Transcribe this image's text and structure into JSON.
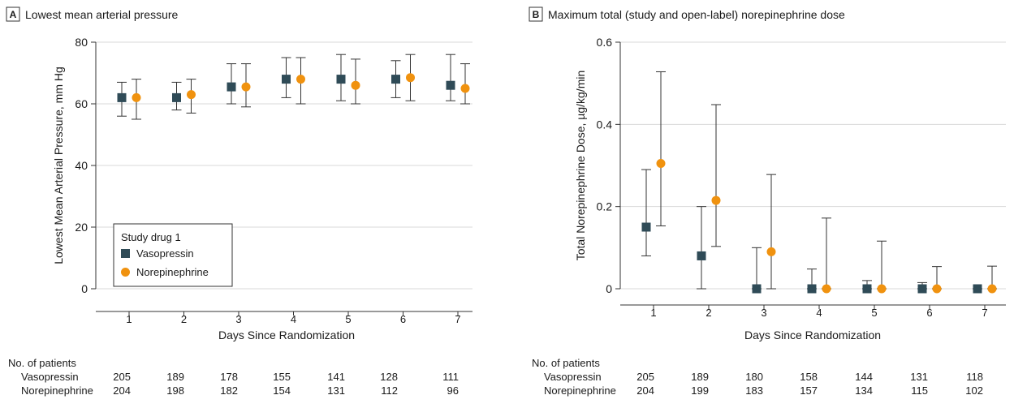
{
  "colors": {
    "vasopressin": "#2f4b57",
    "norepinephrine": "#f0920f",
    "grid": "#d9d9d9",
    "axis": "#333333",
    "errorbar": "#333333"
  },
  "chart_data": [
    {
      "type": "scatter",
      "panel_letter": "A",
      "title": "Lowest mean arterial pressure",
      "xlabel": "Days Since Randomization",
      "ylabel": "Lowest Mean Arterial Pressure, mm Hg",
      "x": [
        1,
        2,
        3,
        4,
        5,
        6,
        7
      ],
      "xlim": [
        0.5,
        7.5
      ],
      "ylim": [
        0,
        80
      ],
      "yticks": [
        0,
        20,
        40,
        60,
        80
      ],
      "ytick_labels": [
        "0",
        "20",
        "40",
        "60",
        "80"
      ],
      "grid": true,
      "legend": {
        "title": "Study drug 1",
        "placement": "lower-left",
        "entries": [
          "Vasopressin",
          "Norepinephrine"
        ]
      },
      "series": [
        {
          "name": "Vasopressin",
          "marker": "square",
          "values": [
            62,
            62,
            65.5,
            68,
            68,
            68,
            66
          ],
          "lower": [
            56,
            58,
            60,
            62,
            61,
            62,
            61
          ],
          "upper": [
            67,
            67,
            73,
            75,
            76,
            74,
            76
          ]
        },
        {
          "name": "Norepinephrine",
          "marker": "circle",
          "values": [
            62,
            63,
            65.5,
            68,
            66,
            68.5,
            65
          ],
          "lower": [
            55,
            57,
            59,
            60,
            60,
            61,
            60
          ],
          "upper": [
            68,
            68,
            73,
            75,
            74.5,
            76,
            73
          ]
        }
      ],
      "patients": {
        "title": "No. of patients",
        "rows": [
          {
            "label": "Vasopressin",
            "values": [
              "205",
              "189",
              "178",
              "155",
              "141",
              "128",
              "111"
            ]
          },
          {
            "label": "Norepinephrine",
            "values": [
              "204",
              "198",
              "182",
              "154",
              "131",
              "112",
              "96"
            ]
          }
        ]
      }
    },
    {
      "type": "scatter",
      "panel_letter": "B",
      "title": "Maximum total (study and open-label) norepinephrine dose",
      "xlabel": "Days Since Randomization",
      "ylabel": "Total Norepinephrine Dose, µg/kg/min",
      "x": [
        1,
        2,
        3,
        4,
        5,
        6,
        7
      ],
      "xlim": [
        0.5,
        7.5
      ],
      "ylim": [
        0,
        0.6
      ],
      "yticks": [
        0,
        0.2,
        0.4,
        0.6
      ],
      "ytick_labels": [
        "0",
        "0.2",
        "0.4",
        "0.6"
      ],
      "grid": true,
      "series": [
        {
          "name": "Vasopressin",
          "marker": "square",
          "values": [
            0.15,
            0.08,
            0,
            0,
            0,
            0,
            0
          ],
          "lower": [
            0.08,
            0,
            0,
            0,
            0,
            0,
            0
          ],
          "upper": [
            0.29,
            0.2,
            0.1,
            0.048,
            0.02,
            0.015,
            0
          ]
        },
        {
          "name": "Norepinephrine",
          "marker": "circle",
          "values": [
            0.305,
            0.215,
            0.09,
            0,
            0,
            0,
            0
          ],
          "lower": [
            0.153,
            0.103,
            0,
            0,
            0,
            0,
            0
          ],
          "upper": [
            0.528,
            0.448,
            0.278,
            0.172,
            0.116,
            0.054,
            0.055
          ]
        }
      ],
      "patients": {
        "title": "No. of patients",
        "rows": [
          {
            "label": "Vasopressin",
            "values": [
              "205",
              "189",
              "180",
              "158",
              "144",
              "131",
              "118"
            ]
          },
          {
            "label": "Norepinephrine",
            "values": [
              "204",
              "199",
              "183",
              "157",
              "134",
              "115",
              "102"
            ]
          }
        ]
      }
    }
  ]
}
